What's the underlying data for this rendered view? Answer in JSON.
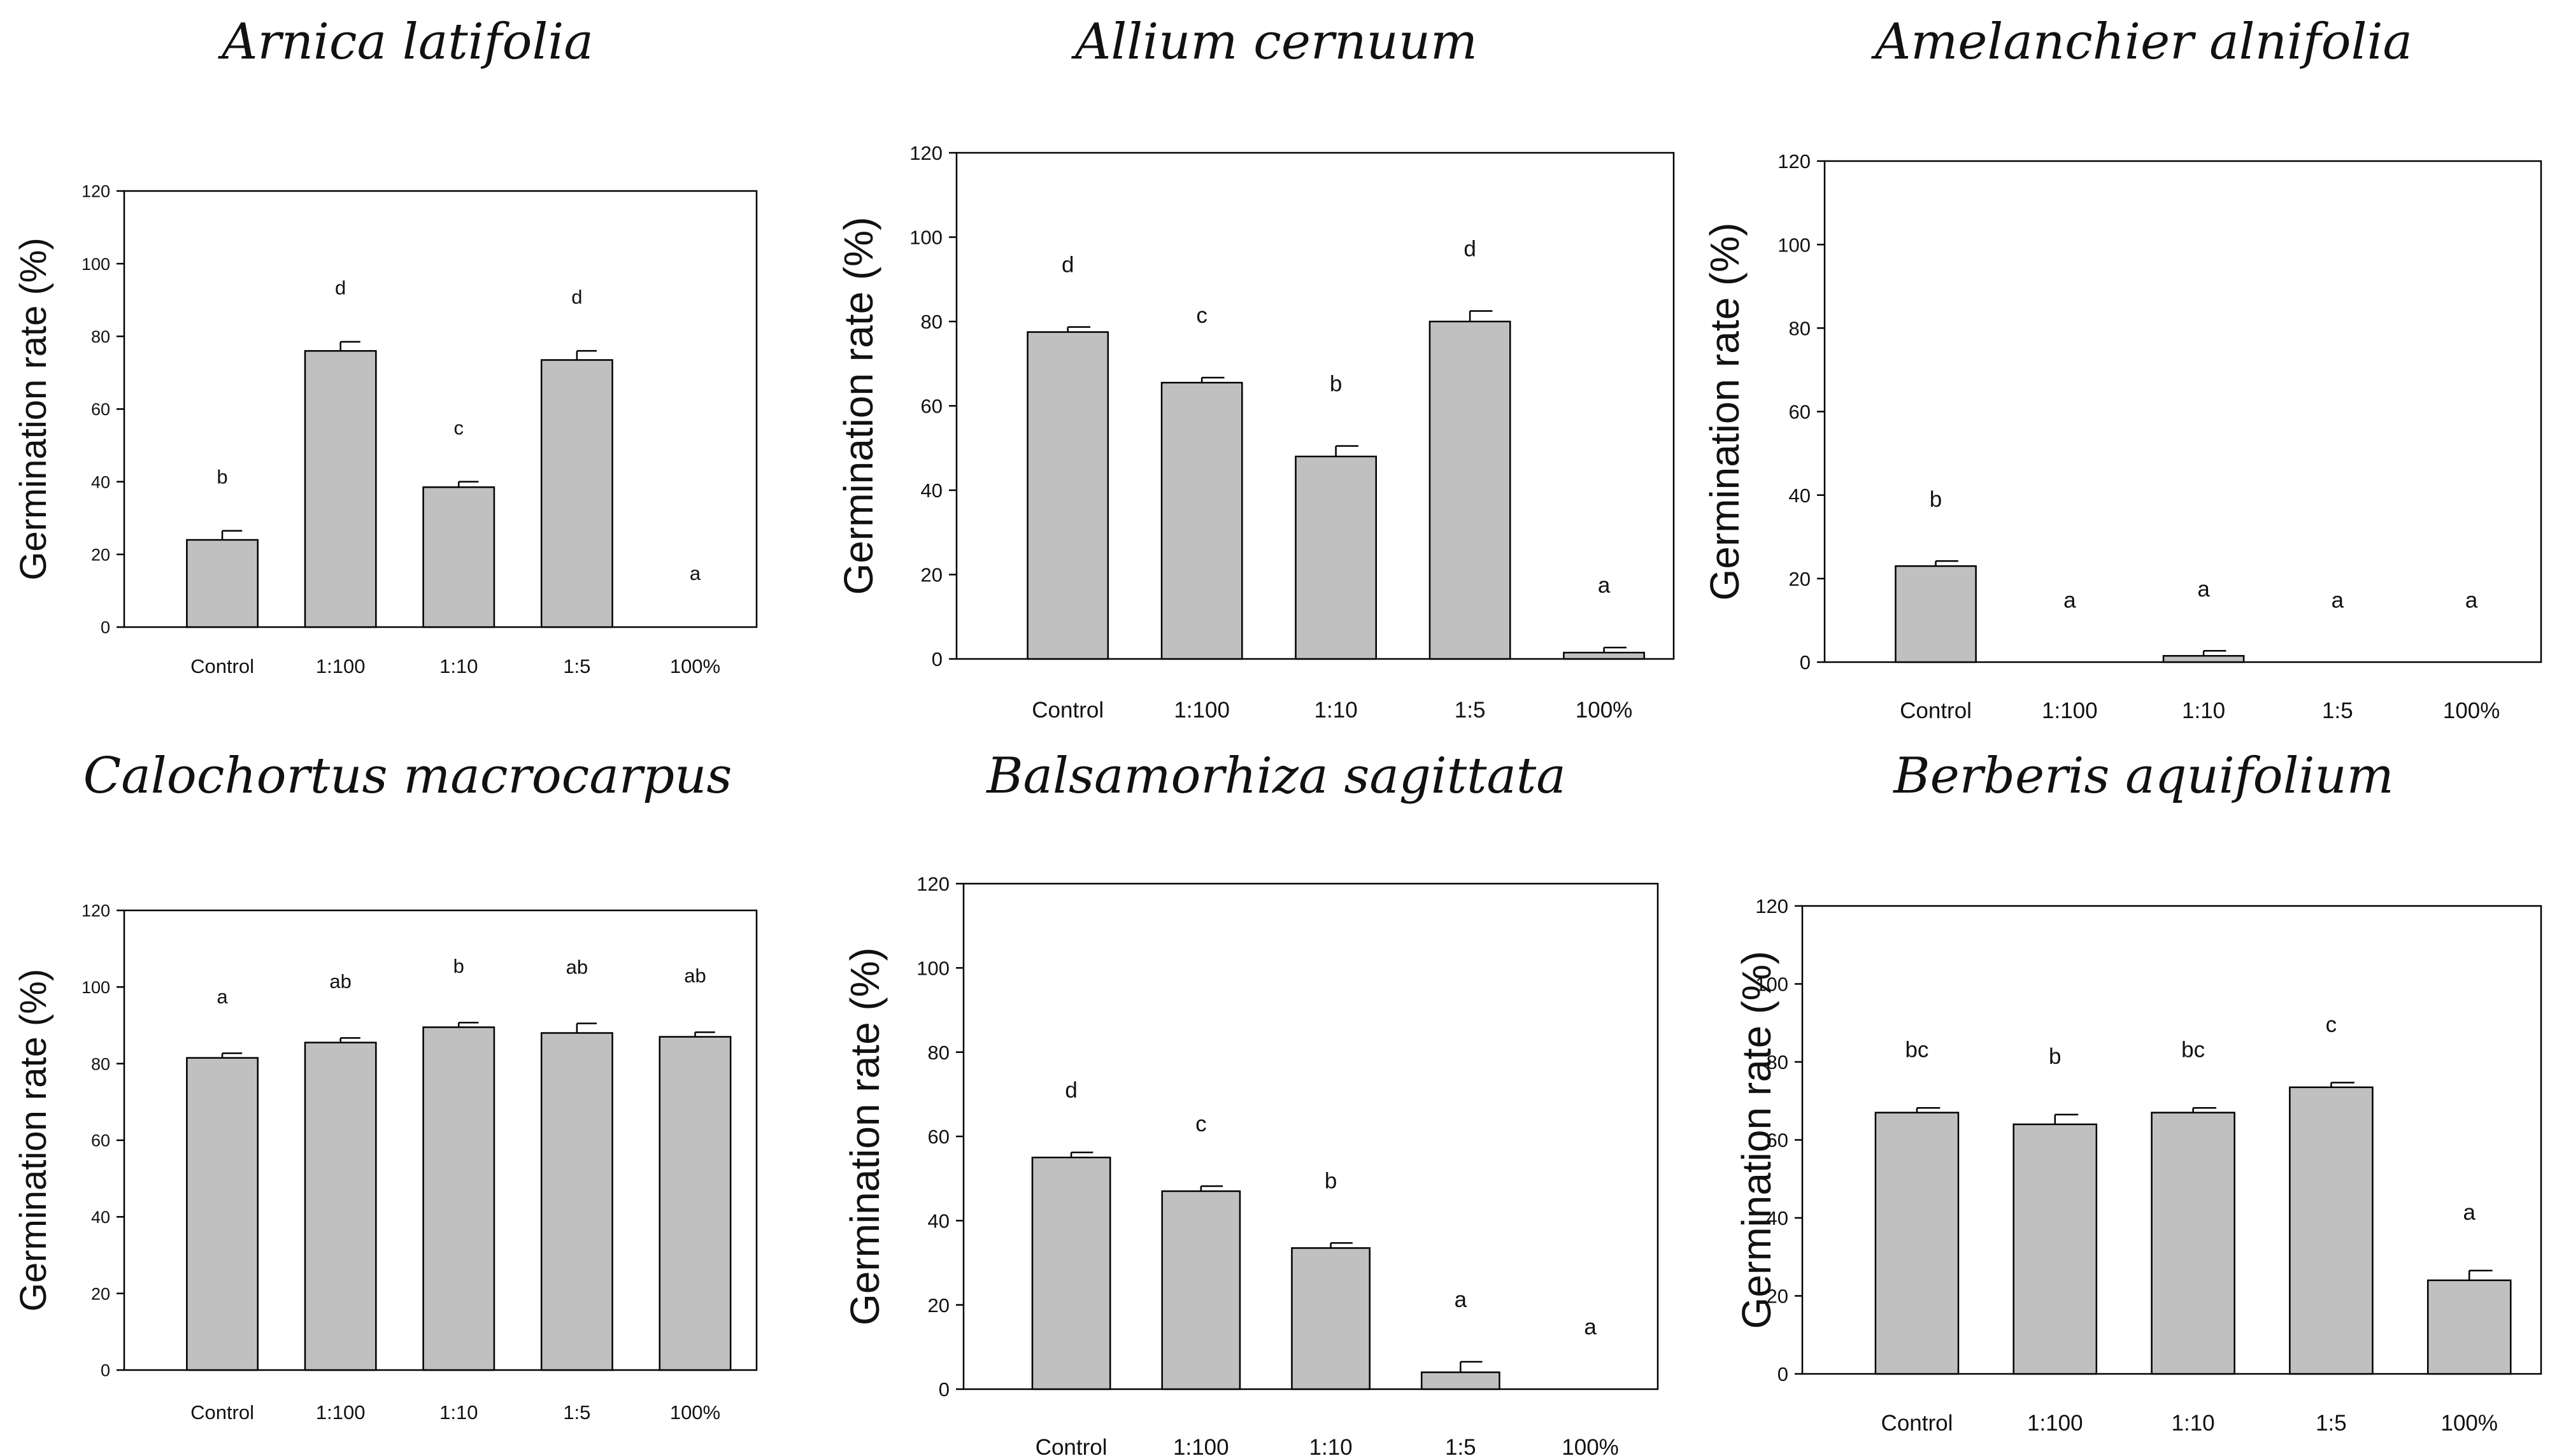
{
  "chart_data": [
    {
      "type": "bar",
      "title": "Arnica latifolia",
      "ylabel": "Germination rate (%)",
      "xlabel": "",
      "ylim": [
        0,
        120
      ],
      "yticks": [
        "0",
        "20",
        "40",
        "60",
        "80",
        "100",
        "120"
      ],
      "categories": [
        "Control",
        "1:100",
        "1:10",
        "1:5",
        "100%"
      ],
      "values": [
        24,
        76,
        38.5,
        73.5,
        0
      ],
      "errors": [
        2.5,
        2.5,
        1.5,
        2.5,
        0
      ],
      "letters": [
        "b",
        "d",
        "c",
        "d",
        "a"
      ],
      "colors": {
        "bar": "#c0c0c0",
        "stroke": "#000000"
      }
    },
    {
      "type": "bar",
      "title": "Allium cernuum",
      "ylabel": "Germination rate (%)",
      "xlabel": "",
      "ylim": [
        0,
        120
      ],
      "yticks": [
        "0",
        "20",
        "40",
        "60",
        "80",
        "100",
        "120"
      ],
      "categories": [
        "Control",
        "1:100",
        "1:10",
        "1:5",
        "100%"
      ],
      "values": [
        77.5,
        65.5,
        48,
        80,
        1.5
      ],
      "errors": [
        1.2,
        1.2,
        2.5,
        2.5,
        1.2
      ],
      "letters": [
        "d",
        "c",
        "b",
        "d",
        "a"
      ],
      "colors": {
        "bar": "#c0c0c0",
        "stroke": "#000000"
      }
    },
    {
      "type": "bar",
      "title": "Amelanchier alnifolia",
      "ylabel": "Germination rate (%)",
      "xlabel": "",
      "ylim": [
        0,
        120
      ],
      "yticks": [
        "0",
        "20",
        "40",
        "60",
        "80",
        "100",
        "120"
      ],
      "categories": [
        "Control",
        "1:100",
        "1:10",
        "1:5",
        "100%"
      ],
      "values": [
        23,
        0,
        1.5,
        0,
        0
      ],
      "errors": [
        1.2,
        0,
        1.2,
        0,
        0
      ],
      "letters": [
        "b",
        "a",
        "a",
        "a",
        "a"
      ],
      "colors": {
        "bar": "#c0c0c0",
        "stroke": "#000000"
      }
    },
    {
      "type": "bar",
      "title": "Calochortus macrocarpus",
      "ylabel": "Germination rate (%)",
      "xlabel": "",
      "ylim": [
        0,
        120
      ],
      "yticks": [
        "0",
        "20",
        "40",
        "60",
        "80",
        "100",
        "120"
      ],
      "categories": [
        "Control",
        "1:100",
        "1:10",
        "1:5",
        "100%"
      ],
      "values": [
        81.5,
        85.5,
        89.5,
        88,
        87
      ],
      "errors": [
        1.2,
        1.2,
        1.2,
        2.5,
        1.2
      ],
      "letters": [
        "a",
        "ab",
        "b",
        "ab",
        "ab"
      ],
      "colors": {
        "bar": "#c0c0c0",
        "stroke": "#000000"
      }
    },
    {
      "type": "bar",
      "title": "Balsamorhiza sagittata",
      "ylabel": "Germination rate (%)",
      "xlabel": "",
      "ylim": [
        0,
        120
      ],
      "yticks": [
        "0",
        "20",
        "40",
        "60",
        "80",
        "100",
        "120"
      ],
      "categories": [
        "Control",
        "1:100",
        "1:10",
        "1:5",
        "100%"
      ],
      "values": [
        55,
        47,
        33.5,
        4,
        0
      ],
      "errors": [
        1.2,
        1.2,
        1.2,
        2.5,
        0
      ],
      "letters": [
        "d",
        "c",
        "b",
        "a",
        "a"
      ],
      "colors": {
        "bar": "#c0c0c0",
        "stroke": "#000000"
      }
    },
    {
      "type": "bar",
      "title": "Berberis aquifolium",
      "ylabel": "Germination rate (%)",
      "xlabel": "",
      "ylim": [
        0,
        120
      ],
      "yticks": [
        "0",
        "20",
        "40",
        "60",
        "80",
        "100",
        "120"
      ],
      "categories": [
        "Control",
        "1:100",
        "1:10",
        "1:5",
        "100%"
      ],
      "values": [
        67,
        64,
        67,
        73.5,
        24
      ],
      "errors": [
        1.2,
        2.5,
        1.2,
        1.2,
        2.5
      ],
      "letters": [
        "bc",
        "b",
        "bc",
        "c",
        "a"
      ],
      "colors": {
        "bar": "#c0c0c0",
        "stroke": "#000000"
      }
    }
  ]
}
